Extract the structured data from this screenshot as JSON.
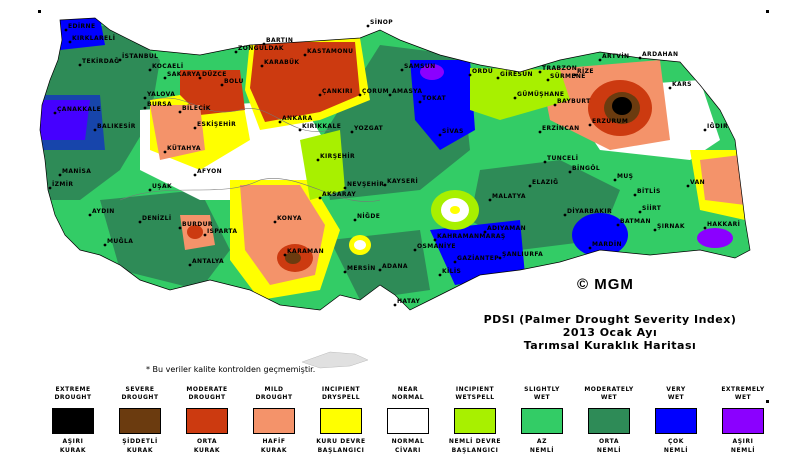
{
  "title": {
    "line1": "PDSI (Palmer Drought Severity Index)",
    "line2": "2013 Ocak Ayı",
    "line3": "Tarımsal Kuraklık Haritası"
  },
  "note": "* Bu veriler kalite kontrolden geçmemiştir.",
  "copyright": "© MGM",
  "legend": [
    {
      "top": "EXTREME\nDROUGHT",
      "bottom": "AŞIRI\nKURAK",
      "color": "#000000"
    },
    {
      "top": "SEVERE\nDROUGHT",
      "bottom": "ŞİDDETLİ\nKURAK",
      "color": "#6b3b0f"
    },
    {
      "top": "MODERATE\nDROUGHT",
      "bottom": "ORTA\nKURAK",
      "color": "#cc3a10"
    },
    {
      "top": "MILD\nDROUGHT",
      "bottom": "HAFİF\nKURAK",
      "color": "#f4936a"
    },
    {
      "top": "INCIPIENT\nDRYSPELL",
      "bottom": "KURU DEVRE\nBAŞLANGICI",
      "color": "#ffff00"
    },
    {
      "top": "NEAR\nNORMAL",
      "bottom": "NORMAL\nCİVARI",
      "color": "#ffffff"
    },
    {
      "top": "INCIPIENT\nWETSPELL",
      "bottom": "NEMLİ DEVRE\nBAŞLANGICI",
      "color": "#a8f000"
    },
    {
      "top": "SLIGHTLY\nWET",
      "bottom": "AZ\nNEMLİ",
      "color": "#33cc66"
    },
    {
      "top": "MODERATELY\nWET",
      "bottom": "ORTA\nNEMLİ",
      "color": "#2e8b57"
    },
    {
      "top": "VERY\nWET",
      "bottom": "ÇOK\nNEMLİ",
      "color": "#0000ff"
    },
    {
      "top": "EXTREMELY\nWET",
      "bottom": "AŞIRI\nNEMLİ",
      "color": "#8b00ff"
    }
  ],
  "cities": [
    {
      "name": "EDİRNE"
    },
    {
      "name": "KIRKLARELİ"
    },
    {
      "name": "TEKİRDAĞ"
    },
    {
      "name": "İSTANBUL"
    },
    {
      "name": "KOCAELİ"
    },
    {
      "name": "SAKARYA"
    },
    {
      "name": "DÜZCE"
    },
    {
      "name": "BOLU"
    },
    {
      "name": "ZONGULDAK"
    },
    {
      "name": "BARTIN"
    },
    {
      "name": "KARABÜK"
    },
    {
      "name": "KASTAMONU"
    },
    {
      "name": "SİNOP"
    },
    {
      "name": "SAMSUN"
    },
    {
      "name": "ORDU"
    },
    {
      "name": "GİRESUN"
    },
    {
      "name": "TRABZON"
    },
    {
      "name": "RİZE"
    },
    {
      "name": "ARTVİN"
    },
    {
      "name": "ARDAHAN"
    },
    {
      "name": "KARS"
    },
    {
      "name": "IĞDIR"
    },
    {
      "name": "ERZURUM"
    },
    {
      "name": "BAYBURT"
    },
    {
      "name": "GÜMÜŞHANE"
    },
    {
      "name": "ERZİNCAN"
    },
    {
      "name": "SİVAS"
    },
    {
      "name": "TOKAT"
    },
    {
      "name": "AMASYA"
    },
    {
      "name": "ÇORUM"
    },
    {
      "name": "ÇANKIRI"
    },
    {
      "name": "ANKARA"
    },
    {
      "name": "KIRIKKALE"
    },
    {
      "name": "YOZGAT"
    },
    {
      "name": "KIRŞEHİR"
    },
    {
      "name": "NEVŞEHİR"
    },
    {
      "name": "KAYSERİ"
    },
    {
      "name": "AKSARAY"
    },
    {
      "name": "NİĞDE"
    },
    {
      "name": "KONYA"
    },
    {
      "name": "KARAMAN"
    },
    {
      "name": "MERSİN"
    },
    {
      "name": "ADANA"
    },
    {
      "name": "OSMANİYE"
    },
    {
      "name": "HATAY"
    },
    {
      "name": "KAHRAMANMARAŞ"
    },
    {
      "name": "GAZİANTEP"
    },
    {
      "name": "KİLİS"
    },
    {
      "name": "ŞANLIURFA"
    },
    {
      "name": "ADIYAMAN"
    },
    {
      "name": "MALATYA"
    },
    {
      "name": "ELAZIĞ"
    },
    {
      "name": "TUNCELİ"
    },
    {
      "name": "BİNGÖL"
    },
    {
      "name": "MUŞ"
    },
    {
      "name": "BİTLİS"
    },
    {
      "name": "VAN"
    },
    {
      "name": "HAKKARİ"
    },
    {
      "name": "ŞIRNAK"
    },
    {
      "name": "SİİRT"
    },
    {
      "name": "BATMAN"
    },
    {
      "name": "MARDİN"
    },
    {
      "name": "DİYARBAKIR"
    },
    {
      "name": "ÇANAKKALE"
    },
    {
      "name": "BALIKESİR"
    },
    {
      "name": "BURSA"
    },
    {
      "name": "YALOVA"
    },
    {
      "name": "BİLECİK"
    },
    {
      "name": "ESKİŞEHİR"
    },
    {
      "name": "KÜTAHYA"
    },
    {
      "name": "MANİSA"
    },
    {
      "name": "İZMİR"
    },
    {
      "name": "AYDIN"
    },
    {
      "name": "MUĞLA"
    },
    {
      "name": "DENİZLİ"
    },
    {
      "name": "UŞAK"
    },
    {
      "name": "AFYON"
    },
    {
      "name": "ISPARTA"
    },
    {
      "name": "BURDUR"
    },
    {
      "name": "ANTALYA"
    },
    {
      "name": "SÜRMENE"
    }
  ]
}
